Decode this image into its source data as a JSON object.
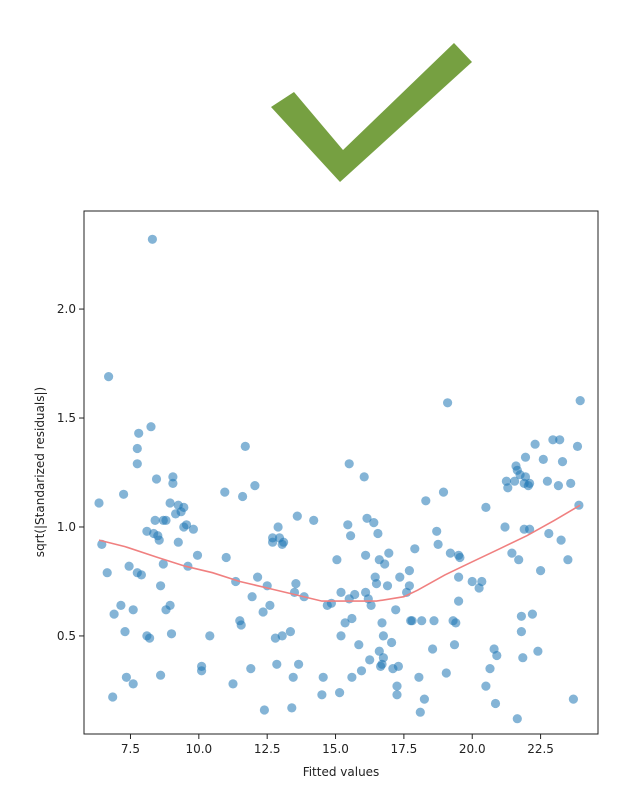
{
  "header": {
    "icon": "checkmark-icon",
    "icon_color": "#76a041"
  },
  "chart_data": {
    "type": "scatter",
    "xlabel": "Fitted values",
    "ylabel": "sqrt(|Standarized residuals|)",
    "xlim": [
      5.8,
      24.6
    ],
    "ylim": [
      0.05,
      2.45
    ],
    "xticks": [
      7.5,
      10.0,
      12.5,
      15.0,
      17.5,
      20.0,
      22.5
    ],
    "xtick_labels": [
      "7.5",
      "10.0",
      "12.5",
      "15.0",
      "17.5",
      "20.0",
      "22.5"
    ],
    "yticks": [
      0.5,
      1.0,
      1.5,
      2.0
    ],
    "ytick_labels": [
      "0.5",
      "1.0",
      "1.5",
      "2.0"
    ],
    "grid": false,
    "point_color": "#1f77b4",
    "line_color": "#f08080",
    "points": [
      [
        6.35,
        1.11
      ],
      [
        6.45,
        0.92
      ],
      [
        6.65,
        0.79
      ],
      [
        6.7,
        1.69
      ],
      [
        6.85,
        0.22
      ],
      [
        6.9,
        0.6
      ],
      [
        7.15,
        0.64
      ],
      [
        7.3,
        0.52
      ],
      [
        7.25,
        1.15
      ],
      [
        7.35,
        0.31
      ],
      [
        7.45,
        0.82
      ],
      [
        7.6,
        0.28
      ],
      [
        7.6,
        0.62
      ],
      [
        7.75,
        0.79
      ],
      [
        7.75,
        1.29
      ],
      [
        7.75,
        1.36
      ],
      [
        7.8,
        1.43
      ],
      [
        7.9,
        0.78
      ],
      [
        8.1,
        0.98
      ],
      [
        8.1,
        0.5
      ],
      [
        8.2,
        0.49
      ],
      [
        8.25,
        1.46
      ],
      [
        8.3,
        2.32
      ],
      [
        8.35,
        0.97
      ],
      [
        8.4,
        1.03
      ],
      [
        8.45,
        1.22
      ],
      [
        8.5,
        0.96
      ],
      [
        8.55,
        0.94
      ],
      [
        8.6,
        0.32
      ],
      [
        8.6,
        0.73
      ],
      [
        8.7,
        0.83
      ],
      [
        8.7,
        1.03
      ],
      [
        8.8,
        0.62
      ],
      [
        8.8,
        1.03
      ],
      [
        8.95,
        1.11
      ],
      [
        8.95,
        0.64
      ],
      [
        9.0,
        0.51
      ],
      [
        9.05,
        1.23
      ],
      [
        9.05,
        1.2
      ],
      [
        9.15,
        1.06
      ],
      [
        9.25,
        1.1
      ],
      [
        9.25,
        0.93
      ],
      [
        9.35,
        1.07
      ],
      [
        9.45,
        1.0
      ],
      [
        9.45,
        1.09
      ],
      [
        9.55,
        1.01
      ],
      [
        9.6,
        0.82
      ],
      [
        9.8,
        0.99
      ],
      [
        9.95,
        0.87
      ],
      [
        10.1,
        0.36
      ],
      [
        10.1,
        0.34
      ],
      [
        10.4,
        0.5
      ],
      [
        10.95,
        1.16
      ],
      [
        11.0,
        0.86
      ],
      [
        11.25,
        0.28
      ],
      [
        11.35,
        0.75
      ],
      [
        11.5,
        0.57
      ],
      [
        11.55,
        0.55
      ],
      [
        11.6,
        1.14
      ],
      [
        11.7,
        1.37
      ],
      [
        11.9,
        0.35
      ],
      [
        11.95,
        0.68
      ],
      [
        12.05,
        1.19
      ],
      [
        12.15,
        0.77
      ],
      [
        12.35,
        0.61
      ],
      [
        12.4,
        0.16
      ],
      [
        12.5,
        0.73
      ],
      [
        12.6,
        0.64
      ],
      [
        12.7,
        0.95
      ],
      [
        12.7,
        0.93
      ],
      [
        12.8,
        0.49
      ],
      [
        12.85,
        0.37
      ],
      [
        12.9,
        1.0
      ],
      [
        12.95,
        0.95
      ],
      [
        13.05,
        0.92
      ],
      [
        13.05,
        0.5
      ],
      [
        13.1,
        0.93
      ],
      [
        13.35,
        0.52
      ],
      [
        13.4,
        0.17
      ],
      [
        13.45,
        0.31
      ],
      [
        13.5,
        0.7
      ],
      [
        13.55,
        0.74
      ],
      [
        13.6,
        1.05
      ],
      [
        13.65,
        0.37
      ],
      [
        13.85,
        0.68
      ],
      [
        14.2,
        1.03
      ],
      [
        14.5,
        0.23
      ],
      [
        14.55,
        0.31
      ],
      [
        14.7,
        0.64
      ],
      [
        14.85,
        0.65
      ],
      [
        15.05,
        0.85
      ],
      [
        15.15,
        0.24
      ],
      [
        15.2,
        0.5
      ],
      [
        15.2,
        0.7
      ],
      [
        15.35,
        0.56
      ],
      [
        15.45,
        1.01
      ],
      [
        15.5,
        0.67
      ],
      [
        15.5,
        1.29
      ],
      [
        15.55,
        0.96
      ],
      [
        15.6,
        0.58
      ],
      [
        15.6,
        0.31
      ],
      [
        15.7,
        0.69
      ],
      [
        15.85,
        0.46
      ],
      [
        15.95,
        0.34
      ],
      [
        16.05,
        1.23
      ],
      [
        16.1,
        0.7
      ],
      [
        16.1,
        0.87
      ],
      [
        16.15,
        1.04
      ],
      [
        16.2,
        0.67
      ],
      [
        16.25,
        0.39
      ],
      [
        16.3,
        0.64
      ],
      [
        16.4,
        1.02
      ],
      [
        16.45,
        0.77
      ],
      [
        16.5,
        0.74
      ],
      [
        16.55,
        0.97
      ],
      [
        16.6,
        0.85
      ],
      [
        16.6,
        0.43
      ],
      [
        16.65,
        0.36
      ],
      [
        16.7,
        0.56
      ],
      [
        16.7,
        0.37
      ],
      [
        16.75,
        0.4
      ],
      [
        16.75,
        0.5
      ],
      [
        16.8,
        0.83
      ],
      [
        16.9,
        0.73
      ],
      [
        16.95,
        0.88
      ],
      [
        17.05,
        0.47
      ],
      [
        17.1,
        0.35
      ],
      [
        17.2,
        0.62
      ],
      [
        17.25,
        0.23
      ],
      [
        17.25,
        0.27
      ],
      [
        17.3,
        0.36
      ],
      [
        17.35,
        0.77
      ],
      [
        17.6,
        0.7
      ],
      [
        17.7,
        0.73
      ],
      [
        17.7,
        0.8
      ],
      [
        17.75,
        0.57
      ],
      [
        17.8,
        0.57
      ],
      [
        17.9,
        0.9
      ],
      [
        18.05,
        0.31
      ],
      [
        18.1,
        0.15
      ],
      [
        18.15,
        0.57
      ],
      [
        18.25,
        0.21
      ],
      [
        18.3,
        1.12
      ],
      [
        18.55,
        0.44
      ],
      [
        18.6,
        0.57
      ],
      [
        18.7,
        0.98
      ],
      [
        18.75,
        0.92
      ],
      [
        18.95,
        1.16
      ],
      [
        19.05,
        0.33
      ],
      [
        19.1,
        1.57
      ],
      [
        19.2,
        0.88
      ],
      [
        19.3,
        0.57
      ],
      [
        19.35,
        0.46
      ],
      [
        19.4,
        0.56
      ],
      [
        19.5,
        0.87
      ],
      [
        19.5,
        0.77
      ],
      [
        19.5,
        0.66
      ],
      [
        19.55,
        0.86
      ],
      [
        20.0,
        0.75
      ],
      [
        20.25,
        0.72
      ],
      [
        20.35,
        0.75
      ],
      [
        20.5,
        0.27
      ],
      [
        20.5,
        1.09
      ],
      [
        20.65,
        0.35
      ],
      [
        20.8,
        0.44
      ],
      [
        20.85,
        0.19
      ],
      [
        20.9,
        0.41
      ],
      [
        21.2,
        1.0
      ],
      [
        21.25,
        1.21
      ],
      [
        21.3,
        1.18
      ],
      [
        21.45,
        0.88
      ],
      [
        21.55,
        1.21
      ],
      [
        21.6,
        1.28
      ],
      [
        21.65,
        0.12
      ],
      [
        21.65,
        1.26
      ],
      [
        21.7,
        0.85
      ],
      [
        21.75,
        1.24
      ],
      [
        21.8,
        0.59
      ],
      [
        21.8,
        0.52
      ],
      [
        21.85,
        0.4
      ],
      [
        21.9,
        1.2
      ],
      [
        21.9,
        0.99
      ],
      [
        21.95,
        1.32
      ],
      [
        21.95,
        1.23
      ],
      [
        22.05,
        1.19
      ],
      [
        22.1,
        0.99
      ],
      [
        22.1,
        1.2
      ],
      [
        22.2,
        0.6
      ],
      [
        22.3,
        1.38
      ],
      [
        22.4,
        0.43
      ],
      [
        22.5,
        0.8
      ],
      [
        22.6,
        1.31
      ],
      [
        22.75,
        1.21
      ],
      [
        22.8,
        0.97
      ],
      [
        22.95,
        1.4
      ],
      [
        23.15,
        1.19
      ],
      [
        23.2,
        1.4
      ],
      [
        23.25,
        0.94
      ],
      [
        23.3,
        1.3
      ],
      [
        23.5,
        0.85
      ],
      [
        23.6,
        1.2
      ],
      [
        23.7,
        0.21
      ],
      [
        23.85,
        1.37
      ],
      [
        23.9,
        1.1
      ],
      [
        23.95,
        1.58
      ]
    ],
    "line": [
      [
        6.35,
        0.94
      ],
      [
        7.3,
        0.91
      ],
      [
        8.5,
        0.86
      ],
      [
        9.5,
        0.82
      ],
      [
        10.5,
        0.79
      ],
      [
        11.5,
        0.75
      ],
      [
        12.5,
        0.72
      ],
      [
        13.5,
        0.69
      ],
      [
        14.5,
        0.66
      ],
      [
        15.5,
        0.66
      ],
      [
        16.5,
        0.66
      ],
      [
        17.5,
        0.68
      ],
      [
        18.0,
        0.71
      ],
      [
        19.0,
        0.78
      ],
      [
        20.0,
        0.84
      ],
      [
        21.0,
        0.9
      ],
      [
        22.0,
        0.96
      ],
      [
        23.0,
        1.03
      ],
      [
        23.95,
        1.1
      ]
    ]
  }
}
